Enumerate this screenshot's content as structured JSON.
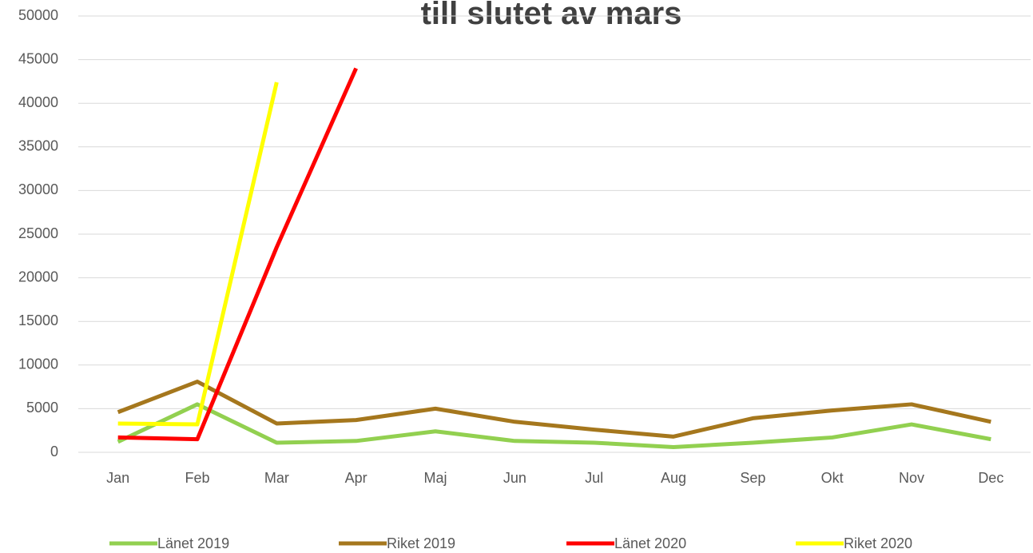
{
  "chart_data": {
    "type": "line",
    "title": "till slutet av mars",
    "categories": [
      "Jan",
      "Feb",
      "Mar",
      "Apr",
      "Maj",
      "Jun",
      "Jul",
      "Aug",
      "Sep",
      "Okt",
      "Nov",
      "Dec"
    ],
    "series": [
      {
        "name": "Länet 2019",
        "color": "#92d050",
        "values": [
          1200,
          5500,
          1100,
          1300,
          2400,
          1300,
          1100,
          600,
          1100,
          1700,
          3200,
          1500
        ]
      },
      {
        "name": "Riket 2019",
        "color": "#a5771d",
        "values": [
          4600,
          8100,
          3300,
          3700,
          5000,
          3500,
          2600,
          1800,
          3900,
          4800,
          5500,
          3500
        ]
      },
      {
        "name": "Länet 2020",
        "color": "#ff0000",
        "values": [
          1700,
          1500,
          23500,
          44000,
          null,
          null,
          null,
          null,
          null,
          null,
          null,
          null
        ]
      },
      {
        "name": "Riket 2020",
        "color": "#ffff00",
        "values": [
          3300,
          3200,
          42400,
          null,
          null,
          null,
          null,
          null,
          null,
          null,
          null,
          null
        ]
      }
    ],
    "ylim": [
      0,
      50000
    ],
    "yticks": [
      0,
      5000,
      10000,
      15000,
      20000,
      25000,
      30000,
      35000,
      40000,
      45000,
      50000
    ],
    "grid": true,
    "legend": "bottom"
  }
}
